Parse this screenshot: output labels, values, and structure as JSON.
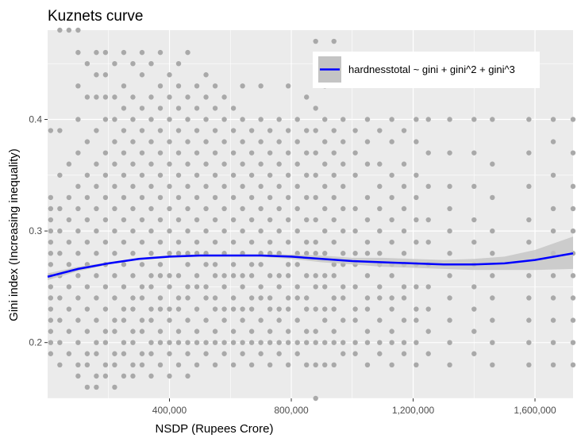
{
  "chart_data": {
    "type": "scatter",
    "title": "Kuznets curve",
    "xlabel": "NSDP (Rupees Crore)",
    "ylabel": "Gini index (Increasing inequality)",
    "xlim": [
      0,
      1725000
    ],
    "ylim": [
      0.15,
      0.48
    ],
    "x_ticks": [
      400000,
      800000,
      1200000,
      1600000
    ],
    "x_tick_labels": [
      "400,000",
      "800,000",
      "1,200,000",
      "1,600,000"
    ],
    "y_ticks": [
      0.2,
      0.3,
      0.4
    ],
    "y_tick_labels": [
      "0.2",
      "0.3",
      "0.4"
    ],
    "grid": true,
    "legend": {
      "position": "top-right",
      "entry": "hardnesstotal ~ gini + gini^2 + gini^3"
    },
    "colors": {
      "points": "#a9a9a9",
      "fit": "#0000ff",
      "ribbon": "#c4c4c4",
      "panel": "#ebebeb",
      "grid": "#ffffff"
    },
    "scatter_columns": [
      {
        "x": 10000,
        "y": [
          0.19,
          0.2,
          0.21,
          0.22,
          0.23,
          0.24,
          0.25,
          0.26,
          0.27,
          0.28,
          0.29,
          0.3,
          0.31,
          0.32,
          0.33,
          0.39
        ]
      },
      {
        "x": 40000,
        "y": [
          0.18,
          0.2,
          0.22,
          0.24,
          0.26,
          0.28,
          0.3,
          0.32,
          0.35,
          0.39,
          0.48
        ]
      },
      {
        "x": 70000,
        "y": [
          0.19,
          0.21,
          0.23,
          0.25,
          0.27,
          0.29,
          0.31,
          0.33,
          0.36,
          0.48
        ]
      },
      {
        "x": 100000,
        "y": [
          0.17,
          0.18,
          0.2,
          0.22,
          0.24,
          0.26,
          0.28,
          0.3,
          0.32,
          0.34,
          0.37,
          0.4,
          0.43,
          0.46,
          0.48
        ]
      },
      {
        "x": 130000,
        "y": [
          0.16,
          0.18,
          0.19,
          0.21,
          0.23,
          0.25,
          0.27,
          0.29,
          0.31,
          0.33,
          0.35,
          0.38,
          0.42,
          0.45
        ]
      },
      {
        "x": 160000,
        "y": [
          0.16,
          0.17,
          0.19,
          0.2,
          0.22,
          0.24,
          0.26,
          0.28,
          0.3,
          0.32,
          0.34,
          0.36,
          0.39,
          0.42,
          0.44,
          0.46
        ]
      },
      {
        "x": 190000,
        "y": [
          0.17,
          0.18,
          0.2,
          0.21,
          0.23,
          0.25,
          0.27,
          0.29,
          0.31,
          0.33,
          0.35,
          0.37,
          0.4,
          0.42,
          0.44,
          0.46
        ]
      },
      {
        "x": 220000,
        "y": [
          0.16,
          0.18,
          0.19,
          0.21,
          0.22,
          0.24,
          0.26,
          0.28,
          0.3,
          0.32,
          0.34,
          0.36,
          0.38,
          0.4,
          0.42,
          0.45
        ]
      },
      {
        "x": 250000,
        "y": [
          0.17,
          0.19,
          0.2,
          0.22,
          0.23,
          0.25,
          0.27,
          0.29,
          0.31,
          0.33,
          0.35,
          0.37,
          0.39,
          0.41,
          0.43,
          0.46
        ]
      },
      {
        "x": 280000,
        "y": [
          0.17,
          0.18,
          0.2,
          0.21,
          0.23,
          0.24,
          0.26,
          0.28,
          0.3,
          0.32,
          0.34,
          0.36,
          0.38,
          0.4,
          0.42,
          0.45
        ]
      },
      {
        "x": 310000,
        "y": [
          0.18,
          0.19,
          0.21,
          0.22,
          0.24,
          0.25,
          0.27,
          0.29,
          0.31,
          0.33,
          0.35,
          0.37,
          0.39,
          0.41,
          0.44,
          0.46
        ]
      },
      {
        "x": 340000,
        "y": [
          0.17,
          0.19,
          0.2,
          0.22,
          0.23,
          0.25,
          0.26,
          0.28,
          0.3,
          0.32,
          0.34,
          0.36,
          0.38,
          0.4,
          0.42,
          0.45
        ]
      },
      {
        "x": 370000,
        "y": [
          0.18,
          0.2,
          0.21,
          0.23,
          0.24,
          0.26,
          0.27,
          0.29,
          0.31,
          0.33,
          0.35,
          0.37,
          0.39,
          0.41,
          0.43,
          0.46
        ]
      },
      {
        "x": 400000,
        "y": [
          0.17,
          0.19,
          0.2,
          0.22,
          0.23,
          0.25,
          0.26,
          0.28,
          0.3,
          0.32,
          0.34,
          0.36,
          0.38,
          0.4,
          0.42,
          0.44
        ]
      },
      {
        "x": 430000,
        "y": [
          0.18,
          0.2,
          0.21,
          0.23,
          0.24,
          0.26,
          0.28,
          0.29,
          0.31,
          0.33,
          0.35,
          0.37,
          0.39,
          0.41,
          0.43,
          0.45
        ]
      },
      {
        "x": 460000,
        "y": [
          0.17,
          0.19,
          0.2,
          0.22,
          0.24,
          0.25,
          0.27,
          0.28,
          0.3,
          0.32,
          0.34,
          0.36,
          0.38,
          0.4,
          0.42,
          0.46
        ]
      },
      {
        "x": 490000,
        "y": [
          0.18,
          0.2,
          0.21,
          0.23,
          0.25,
          0.26,
          0.28,
          0.29,
          0.31,
          0.33,
          0.35,
          0.37,
          0.39,
          0.41,
          0.43
        ]
      },
      {
        "x": 520000,
        "y": [
          0.19,
          0.2,
          0.22,
          0.24,
          0.25,
          0.27,
          0.28,
          0.3,
          0.32,
          0.34,
          0.36,
          0.38,
          0.4,
          0.42,
          0.44
        ]
      },
      {
        "x": 550000,
        "y": [
          0.18,
          0.2,
          0.21,
          0.23,
          0.24,
          0.26,
          0.27,
          0.29,
          0.31,
          0.33,
          0.35,
          0.37,
          0.39,
          0.41,
          0.43
        ]
      },
      {
        "x": 580000,
        "y": [
          0.19,
          0.2,
          0.22,
          0.23,
          0.25,
          0.26,
          0.28,
          0.3,
          0.32,
          0.34,
          0.36,
          0.38,
          0.4,
          0.42
        ]
      },
      {
        "x": 610000,
        "y": [
          0.18,
          0.2,
          0.21,
          0.23,
          0.24,
          0.26,
          0.27,
          0.29,
          0.31,
          0.33,
          0.35,
          0.37,
          0.39,
          0.41
        ]
      },
      {
        "x": 640000,
        "y": [
          0.19,
          0.2,
          0.22,
          0.23,
          0.25,
          0.26,
          0.28,
          0.3,
          0.32,
          0.34,
          0.36,
          0.38,
          0.4,
          0.43
        ]
      },
      {
        "x": 670000,
        "y": [
          0.18,
          0.2,
          0.21,
          0.23,
          0.24,
          0.26,
          0.27,
          0.29,
          0.31,
          0.33,
          0.35,
          0.37,
          0.39
        ]
      },
      {
        "x": 700000,
        "y": [
          0.19,
          0.2,
          0.22,
          0.24,
          0.25,
          0.27,
          0.28,
          0.3,
          0.32,
          0.34,
          0.36,
          0.38,
          0.4,
          0.43
        ]
      },
      {
        "x": 730000,
        "y": [
          0.18,
          0.2,
          0.21,
          0.23,
          0.24,
          0.26,
          0.28,
          0.29,
          0.31,
          0.33,
          0.35,
          0.37,
          0.39
        ]
      },
      {
        "x": 760000,
        "y": [
          0.19,
          0.2,
          0.22,
          0.23,
          0.25,
          0.26,
          0.28,
          0.3,
          0.32,
          0.34,
          0.36,
          0.38,
          0.4
        ]
      },
      {
        "x": 790000,
        "y": [
          0.18,
          0.2,
          0.21,
          0.23,
          0.24,
          0.26,
          0.27,
          0.29,
          0.31,
          0.33,
          0.35,
          0.37,
          0.39,
          0.43
        ]
      },
      {
        "x": 820000,
        "y": [
          0.19,
          0.2,
          0.22,
          0.24,
          0.25,
          0.27,
          0.28,
          0.3,
          0.32,
          0.34,
          0.36,
          0.38,
          0.4
        ]
      },
      {
        "x": 850000,
        "y": [
          0.18,
          0.2,
          0.21,
          0.23,
          0.24,
          0.26,
          0.28,
          0.29,
          0.31,
          0.33,
          0.35,
          0.37,
          0.39,
          0.42
        ]
      },
      {
        "x": 880000,
        "y": [
          0.15,
          0.18,
          0.2,
          0.21,
          0.23,
          0.25,
          0.26,
          0.28,
          0.29,
          0.31,
          0.33,
          0.35,
          0.37,
          0.39,
          0.41,
          0.45,
          0.47
        ]
      },
      {
        "x": 910000,
        "y": [
          0.18,
          0.2,
          0.22,
          0.23,
          0.25,
          0.26,
          0.28,
          0.3,
          0.32,
          0.34,
          0.36,
          0.38,
          0.4,
          0.43
        ]
      },
      {
        "x": 940000,
        "y": [
          0.18,
          0.2,
          0.21,
          0.23,
          0.24,
          0.26,
          0.27,
          0.29,
          0.31,
          0.33,
          0.35,
          0.37,
          0.39,
          0.47
        ]
      },
      {
        "x": 970000,
        "y": [
          0.19,
          0.2,
          0.22,
          0.24,
          0.25,
          0.27,
          0.28,
          0.3,
          0.32,
          0.34,
          0.36,
          0.38,
          0.4,
          0.44
        ]
      },
      {
        "x": 1010000,
        "y": [
          0.19,
          0.2,
          0.22,
          0.23,
          0.25,
          0.27,
          0.28,
          0.3,
          0.32,
          0.35,
          0.37,
          0.39
        ]
      },
      {
        "x": 1050000,
        "y": [
          0.18,
          0.2,
          0.21,
          0.23,
          0.24,
          0.26,
          0.28,
          0.29,
          0.31,
          0.33,
          0.36,
          0.38,
          0.4
        ]
      },
      {
        "x": 1090000,
        "y": [
          0.19,
          0.2,
          0.22,
          0.24,
          0.25,
          0.27,
          0.28,
          0.3,
          0.32,
          0.34,
          0.36,
          0.39
        ]
      },
      {
        "x": 1130000,
        "y": [
          0.18,
          0.2,
          0.21,
          0.23,
          0.24,
          0.26,
          0.27,
          0.29,
          0.31,
          0.33,
          0.35,
          0.38,
          0.4
        ]
      },
      {
        "x": 1170000,
        "y": [
          0.19,
          0.2,
          0.22,
          0.24,
          0.25,
          0.27,
          0.28,
          0.3,
          0.32,
          0.34,
          0.36,
          0.39
        ]
      },
      {
        "x": 1210000,
        "y": [
          0.18,
          0.2,
          0.22,
          0.23,
          0.25,
          0.27,
          0.29,
          0.31,
          0.33,
          0.35,
          0.38,
          0.4
        ]
      },
      {
        "x": 1250000,
        "y": [
          0.19,
          0.21,
          0.23,
          0.25,
          0.27,
          0.29,
          0.31,
          0.34,
          0.37,
          0.4
        ]
      },
      {
        "x": 1320000,
        "y": [
          0.18,
          0.2,
          0.22,
          0.24,
          0.26,
          0.28,
          0.3,
          0.32,
          0.34,
          0.37,
          0.4
        ]
      },
      {
        "x": 1400000,
        "y": [
          0.19,
          0.21,
          0.23,
          0.25,
          0.27,
          0.29,
          0.31,
          0.34,
          0.37,
          0.4
        ]
      },
      {
        "x": 1460000,
        "y": [
          0.18,
          0.2,
          0.22,
          0.24,
          0.26,
          0.28,
          0.3,
          0.33,
          0.36,
          0.4
        ]
      },
      {
        "x": 1580000,
        "y": [
          0.18,
          0.2,
          0.22,
          0.24,
          0.26,
          0.29,
          0.31,
          0.34,
          0.37,
          0.4
        ]
      },
      {
        "x": 1660000,
        "y": [
          0.18,
          0.2,
          0.22,
          0.24,
          0.26,
          0.28,
          0.3,
          0.32,
          0.35,
          0.38,
          0.4
        ]
      },
      {
        "x": 1725000,
        "y": [
          0.18,
          0.2,
          0.22,
          0.24,
          0.26,
          0.28,
          0.3,
          0.32,
          0.34,
          0.37,
          0.4
        ]
      }
    ],
    "fit_line": {
      "x": [
        0,
        100000,
        200000,
        300000,
        400000,
        500000,
        600000,
        700000,
        800000,
        900000,
        1000000,
        1100000,
        1200000,
        1300000,
        1400000,
        1500000,
        1600000,
        1725000
      ],
      "y": [
        0.259,
        0.266,
        0.271,
        0.275,
        0.277,
        0.278,
        0.278,
        0.278,
        0.277,
        0.275,
        0.273,
        0.272,
        0.271,
        0.27,
        0.27,
        0.271,
        0.274,
        0.28
      ],
      "lower": [
        0.256,
        0.264,
        0.27,
        0.274,
        0.276,
        0.277,
        0.277,
        0.277,
        0.275,
        0.272,
        0.27,
        0.268,
        0.267,
        0.266,
        0.265,
        0.265,
        0.265,
        0.266
      ],
      "upper": [
        0.262,
        0.268,
        0.272,
        0.276,
        0.278,
        0.279,
        0.279,
        0.279,
        0.279,
        0.278,
        0.276,
        0.276,
        0.275,
        0.274,
        0.275,
        0.277,
        0.283,
        0.295
      ]
    }
  }
}
